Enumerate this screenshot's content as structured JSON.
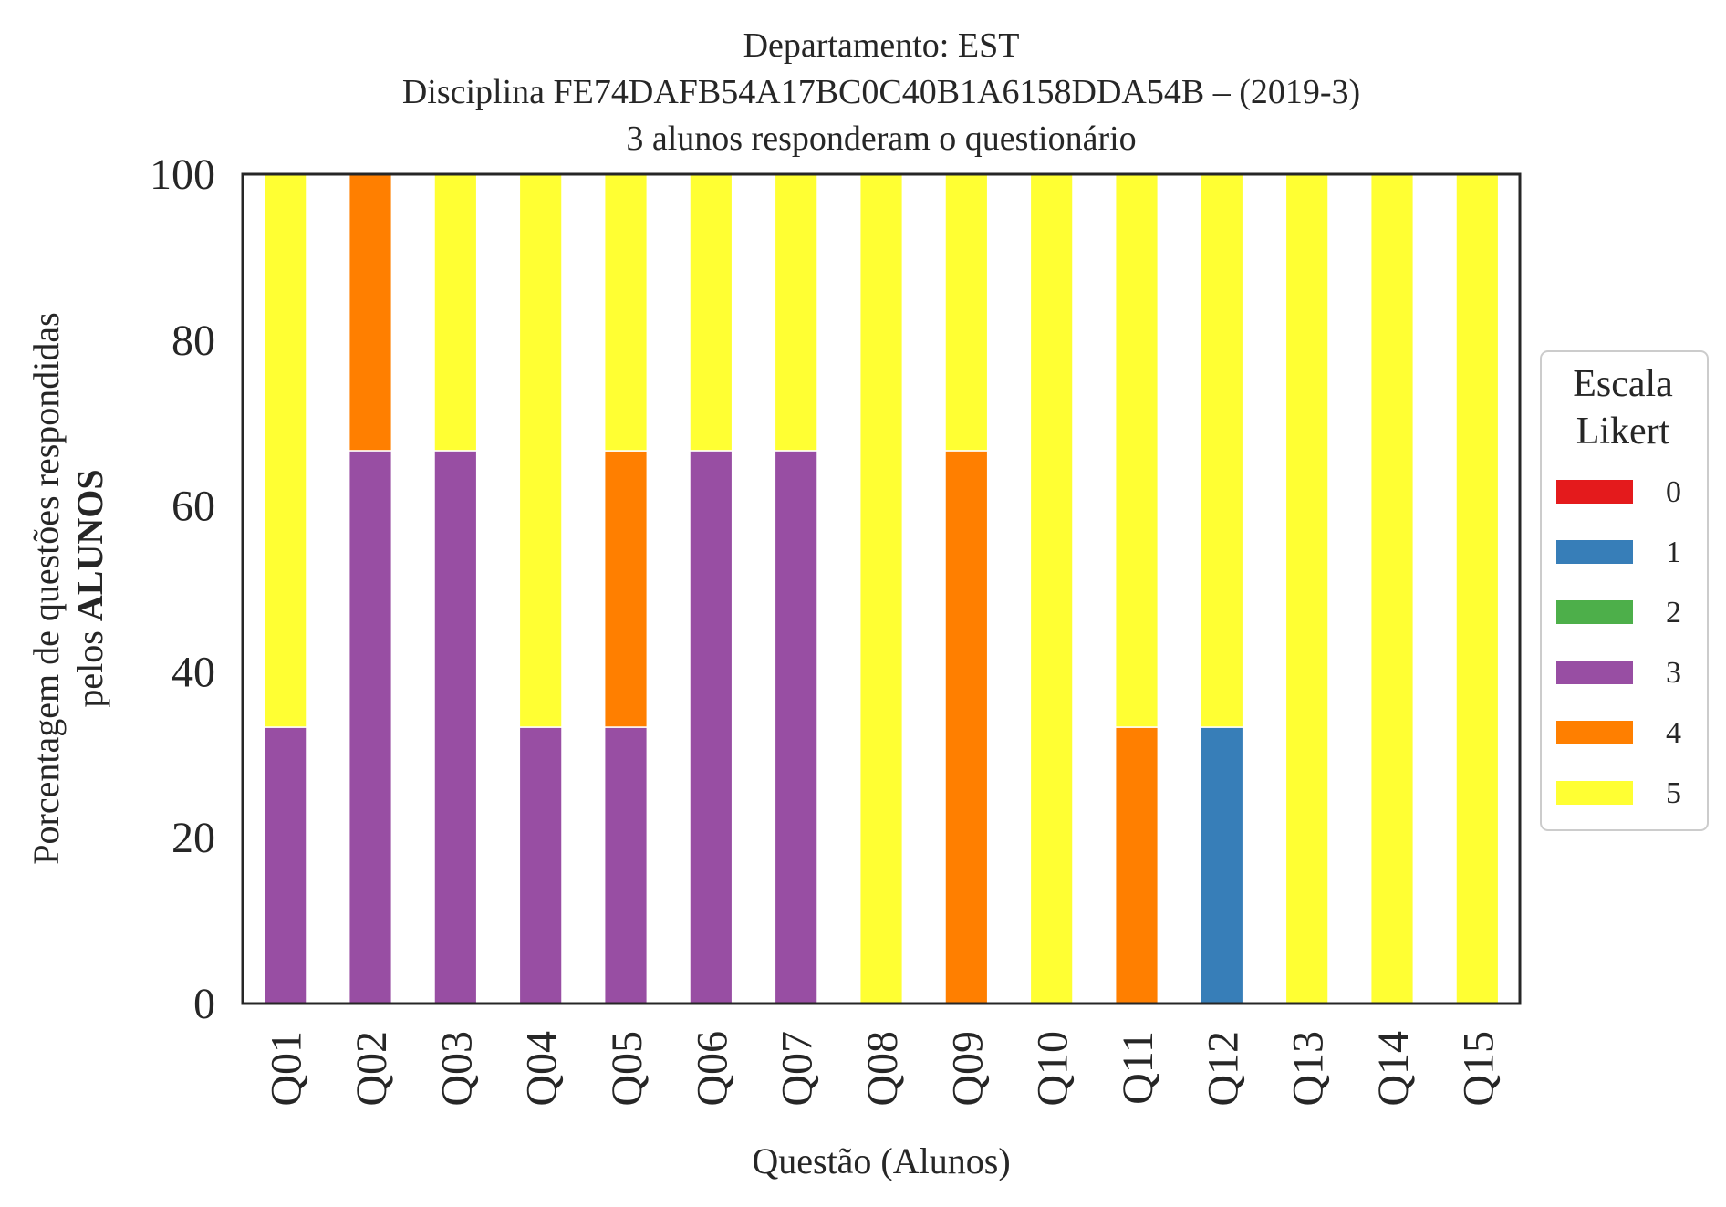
{
  "chart_data": {
    "type": "bar",
    "stacked": true,
    "title_lines": [
      "Departamento: EST",
      "Disciplina FE74DAFB54A17BC0C40B1A6158DDA54B – (2019-3)",
      "3 alunos responderam o questionário"
    ],
    "xlabel": "Questão (Alunos)",
    "ylabel_line1": "Porcentagem de questões respondidas",
    "ylabel_line2_prefix": "pelos ",
    "ylabel_line2_bold": "ALUNOS",
    "ylim": [
      0,
      100
    ],
    "yticks": [
      0,
      20,
      40,
      60,
      80,
      100
    ],
    "grid": false,
    "legend_placement": "right",
    "legend_title_lines": [
      "Escala",
      "Likert"
    ],
    "categories": [
      "Q01",
      "Q02",
      "Q03",
      "Q04",
      "Q05",
      "Q06",
      "Q07",
      "Q08",
      "Q09",
      "Q10",
      "Q11",
      "Q12",
      "Q13",
      "Q14",
      "Q15"
    ],
    "series": [
      {
        "name": "0",
        "color": "#e41a1c",
        "values": [
          0,
          0,
          0,
          0,
          0,
          0,
          0,
          0,
          0,
          0,
          0,
          0,
          0,
          0,
          0
        ]
      },
      {
        "name": "1",
        "color": "#377eb8",
        "values": [
          0,
          0,
          0,
          0,
          0,
          0,
          0,
          0,
          0,
          0,
          0,
          33.33,
          0,
          0,
          0
        ]
      },
      {
        "name": "2",
        "color": "#4daf4a",
        "values": [
          0,
          0,
          0,
          0,
          0,
          0,
          0,
          0,
          0,
          0,
          0,
          0,
          0,
          0,
          0
        ]
      },
      {
        "name": "3",
        "color": "#984ea3",
        "values": [
          33.33,
          66.67,
          66.67,
          33.33,
          33.33,
          66.67,
          66.67,
          0,
          0,
          0,
          0,
          0,
          0,
          0,
          0
        ]
      },
      {
        "name": "4",
        "color": "#ff7f00",
        "values": [
          0,
          33.33,
          0,
          0,
          33.33,
          0,
          0,
          0,
          66.67,
          0,
          33.33,
          0,
          0,
          0,
          0
        ]
      },
      {
        "name": "5",
        "color": "#ffff33",
        "values": [
          66.67,
          0,
          33.33,
          66.67,
          33.33,
          33.33,
          33.33,
          100,
          33.33,
          100,
          66.67,
          66.67,
          100,
          100,
          100
        ]
      }
    ]
  }
}
